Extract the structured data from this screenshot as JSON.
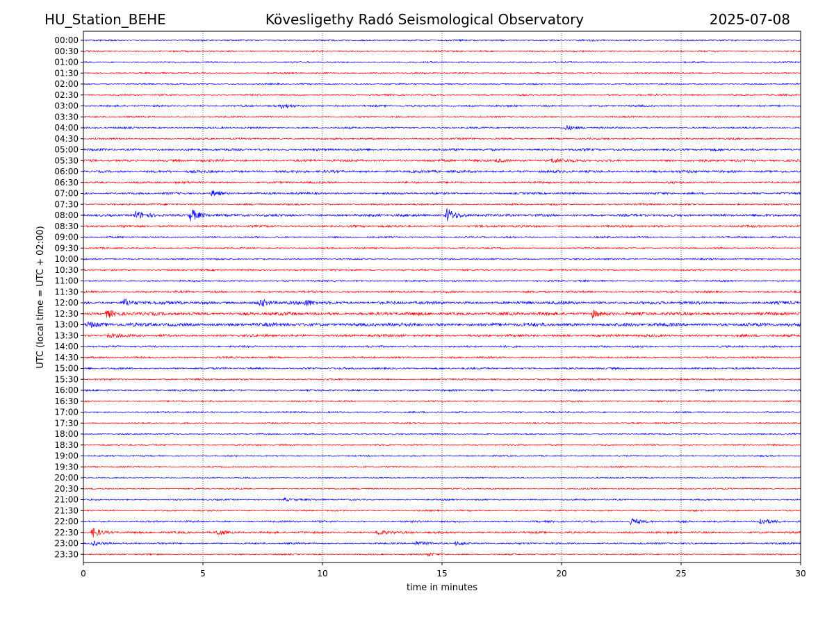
{
  "header": {
    "station": "HU_Station_BEHE",
    "observatory": "Kövesligethy Radó Seismological Observatory",
    "date": "2025-07-08"
  },
  "chart_data": {
    "type": "line",
    "xlabel": "time in minutes",
    "ylabel": "UTC (local time = UTC + 02:00)",
    "xlim": [
      0,
      30
    ],
    "x_ticks": [
      "0",
      "5",
      "10",
      "15",
      "20",
      "25",
      "30"
    ],
    "x_tick_values": [
      0,
      5,
      10,
      15,
      20,
      25,
      30
    ],
    "grid": "vertical dotted at 5-minute ticks",
    "colors": {
      "even_rows": "#0000ff",
      "odd_rows": "#ff0000"
    },
    "rows": [
      "00:00",
      "00:30",
      "01:00",
      "01:30",
      "02:00",
      "02:30",
      "03:00",
      "03:30",
      "04:00",
      "04:30",
      "05:00",
      "05:30",
      "06:00",
      "06:30",
      "07:00",
      "07:30",
      "08:00",
      "08:30",
      "09:00",
      "09:30",
      "10:00",
      "10:30",
      "11:00",
      "11:30",
      "12:00",
      "12:30",
      "13:00",
      "13:30",
      "14:00",
      "14:30",
      "15:00",
      "15:30",
      "16:00",
      "16:30",
      "17:00",
      "17:30",
      "18:00",
      "18:30",
      "19:00",
      "19:30",
      "20:00",
      "20:30",
      "21:00",
      "21:30",
      "22:00",
      "22:30",
      "23:00",
      "23:30"
    ],
    "noise_level": [
      1.2,
      1.2,
      1.1,
      1.2,
      1.1,
      1.2,
      1.4,
      1.2,
      1.4,
      1.4,
      1.8,
      1.9,
      2.0,
      1.6,
      1.7,
      1.4,
      2.0,
      1.7,
      1.3,
      1.2,
      1.2,
      1.3,
      1.3,
      1.6,
      2.4,
      2.6,
      2.8,
      2.0,
      1.5,
      1.4,
      1.5,
      1.3,
      1.4,
      1.2,
      1.2,
      1.1,
      1.1,
      1.1,
      1.1,
      1.1,
      1.0,
      1.1,
      1.2,
      1.2,
      1.5,
      1.6,
      1.4,
      1.1
    ],
    "events": [
      {
        "row": "03:00",
        "minute": 8.3,
        "amplitude": 3
      },
      {
        "row": "04:00",
        "minute": 20.2,
        "amplitude": 3.5
      },
      {
        "row": "05:30",
        "minute": 19.6,
        "amplitude": 3.5
      },
      {
        "row": "05:30",
        "minute": 17.3,
        "amplitude": 2.5
      },
      {
        "row": "07:00",
        "minute": 5.4,
        "amplitude": 4
      },
      {
        "row": "08:00",
        "minute": 2.2,
        "amplitude": 5
      },
      {
        "row": "08:00",
        "minute": 4.5,
        "amplitude": 9
      },
      {
        "row": "08:00",
        "minute": 15.2,
        "amplitude": 10
      },
      {
        "row": "12:00",
        "minute": 1.7,
        "amplitude": 5
      },
      {
        "row": "12:00",
        "minute": 7.4,
        "amplitude": 5
      },
      {
        "row": "12:00",
        "minute": 9.3,
        "amplitude": 4
      },
      {
        "row": "12:30",
        "minute": 1.0,
        "amplitude": 5
      },
      {
        "row": "12:30",
        "minute": 21.3,
        "amplitude": 5
      },
      {
        "row": "13:00",
        "minute": 0.2,
        "amplitude": 4
      },
      {
        "row": "13:30",
        "minute": 1.0,
        "amplitude": 3
      },
      {
        "row": "21:00",
        "minute": 8.4,
        "amplitude": 2.5
      },
      {
        "row": "22:00",
        "minute": 22.9,
        "amplitude": 5
      },
      {
        "row": "22:00",
        "minute": 28.3,
        "amplitude": 5
      },
      {
        "row": "22:30",
        "minute": 0.4,
        "amplitude": 7
      },
      {
        "row": "22:30",
        "minute": 5.6,
        "amplitude": 4
      },
      {
        "row": "22:30",
        "minute": 12.3,
        "amplitude": 4
      },
      {
        "row": "23:00",
        "minute": 0.4,
        "amplitude": 3.5
      },
      {
        "row": "23:00",
        "minute": 13.9,
        "amplitude": 3
      },
      {
        "row": "23:00",
        "minute": 15.6,
        "amplitude": 3
      },
      {
        "row": "23:30",
        "minute": 14.4,
        "amplitude": 2.5
      }
    ]
  }
}
